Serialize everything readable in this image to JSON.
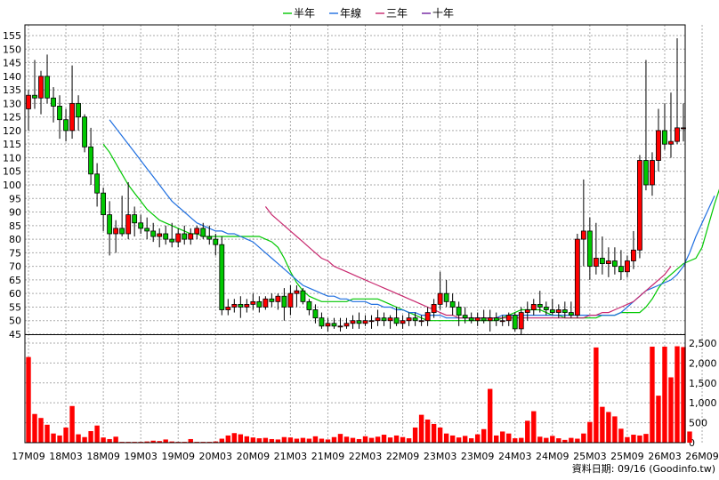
{
  "legend": [
    {
      "name": "半年",
      "color": "#00c800"
    },
    {
      "name": "年線",
      "color": "#1f6fe0"
    },
    {
      "name": "三年",
      "color": "#c8286e"
    },
    {
      "name": "十年",
      "color": "#7020a0"
    }
  ],
  "footer": {
    "date_label": "資料日期: 09/16",
    "source": "(Goodinfo.tw)"
  },
  "chart_data": [
    {
      "type": "candlestick",
      "price_axis": {
        "min": 45,
        "max": 155,
        "ticks": [
          45,
          50,
          55,
          60,
          65,
          70,
          75,
          80,
          85,
          90,
          95,
          100,
          105,
          110,
          115,
          120,
          125,
          130,
          135,
          140,
          145,
          150,
          155
        ]
      },
      "x_tick_labels": [
        "17M09",
        "18M03",
        "18M09",
        "19M03",
        "19M09",
        "20M03",
        "20M09",
        "21M03",
        "21M09",
        "22M03",
        "22M09",
        "23M03",
        "23M09",
        "24M03",
        "24M09",
        "25M03",
        "25M09",
        "26M03",
        "26M09"
      ],
      "candles": [
        [
          128,
          135,
          120,
          133
        ],
        [
          133,
          146,
          128,
          132
        ],
        [
          132,
          142,
          126,
          140
        ],
        [
          140,
          148,
          130,
          132
        ],
        [
          132,
          136,
          123,
          129
        ],
        [
          129,
          133,
          117,
          124
        ],
        [
          124,
          128,
          116,
          120
        ],
        [
          120,
          144,
          117,
          130
        ],
        [
          130,
          133,
          120,
          125
        ],
        [
          125,
          126,
          112,
          114
        ],
        [
          114,
          121,
          100,
          104
        ],
        [
          104,
          108,
          92,
          97
        ],
        [
          97,
          99,
          83,
          89
        ],
        [
          89,
          94,
          74,
          82
        ],
        [
          82,
          87,
          75,
          84
        ],
        [
          84,
          96,
          81,
          82
        ],
        [
          82,
          101,
          80,
          89
        ],
        [
          89,
          92,
          81,
          86
        ],
        [
          86,
          89,
          82,
          84
        ],
        [
          84,
          88,
          80,
          83
        ],
        [
          83,
          86,
          79,
          81
        ],
        [
          81,
          84,
          77,
          82
        ],
        [
          82,
          85,
          78,
          80
        ],
        [
          80,
          86,
          77,
          79
        ],
        [
          79,
          84,
          77,
          82
        ],
        [
          82,
          85,
          78,
          80
        ],
        [
          80,
          84,
          78,
          82
        ],
        [
          82,
          85,
          80,
          84
        ],
        [
          84,
          86,
          80,
          81
        ],
        [
          81,
          85,
          78,
          80
        ],
        [
          80,
          82,
          74,
          78
        ],
        [
          78,
          81,
          52,
          54
        ],
        [
          54,
          58,
          52,
          55
        ],
        [
          55,
          58,
          53,
          56
        ],
        [
          56,
          59,
          51,
          55
        ],
        [
          55,
          58,
          53,
          56
        ],
        [
          56,
          60,
          54,
          57
        ],
        [
          57,
          59,
          53,
          55
        ],
        [
          55,
          59,
          54,
          58
        ],
        [
          58,
          60,
          55,
          57
        ],
        [
          57,
          60,
          54,
          59
        ],
        [
          59,
          62,
          50,
          55
        ],
        [
          55,
          63,
          52,
          60
        ],
        [
          60,
          63,
          55,
          61
        ],
        [
          61,
          62,
          56,
          57
        ],
        [
          57,
          58,
          52,
          54
        ],
        [
          54,
          56,
          49,
          51
        ],
        [
          51,
          53,
          47,
          48
        ],
        [
          48,
          51,
          46,
          49
        ],
        [
          49,
          51,
          47,
          48
        ],
        [
          48,
          51,
          46,
          48
        ],
        [
          48,
          51,
          47,
          49
        ],
        [
          49,
          52,
          47,
          50
        ],
        [
          50,
          53,
          47,
          49
        ],
        [
          49,
          52,
          48,
          50
        ],
        [
          50,
          52,
          47,
          50
        ],
        [
          50,
          54,
          48,
          51
        ],
        [
          51,
          53,
          48,
          50
        ],
        [
          50,
          52,
          47,
          51
        ],
        [
          51,
          55,
          48,
          49
        ],
        [
          49,
          52,
          47,
          50
        ],
        [
          50,
          53,
          48,
          51
        ],
        [
          51,
          53,
          48,
          50
        ],
        [
          50,
          52,
          48,
          50
        ],
        [
          50,
          55,
          48,
          53
        ],
        [
          53,
          58,
          51,
          56
        ],
        [
          56,
          68,
          54,
          60
        ],
        [
          60,
          65,
          55,
          57
        ],
        [
          57,
          60,
          52,
          55
        ],
        [
          55,
          57,
          48,
          52
        ],
        [
          52,
          55,
          49,
          51
        ],
        [
          51,
          53,
          49,
          50
        ],
        [
          50,
          53,
          48,
          51
        ],
        [
          51,
          54,
          49,
          50
        ],
        [
          50,
          54,
          46,
          51
        ],
        [
          51,
          53,
          48,
          50
        ],
        [
          50,
          52,
          48,
          50
        ],
        [
          50,
          53,
          48,
          52
        ],
        [
          52,
          53,
          46,
          47
        ],
        [
          47,
          55,
          45,
          53
        ],
        [
          53,
          57,
          50,
          54
        ],
        [
          54,
          58,
          52,
          56
        ],
        [
          56,
          61,
          53,
          55
        ],
        [
          55,
          57,
          52,
          54
        ],
        [
          54,
          58,
          52,
          53
        ],
        [
          53,
          56,
          51,
          54
        ],
        [
          54,
          57,
          51,
          53
        ],
        [
          53,
          57,
          51,
          52
        ],
        [
          52,
          82,
          51,
          80
        ],
        [
          80,
          102,
          70,
          83
        ],
        [
          83,
          88,
          65,
          70
        ],
        [
          70,
          86,
          67,
          73
        ],
        [
          73,
          81,
          67,
          71
        ],
        [
          71,
          77,
          66,
          72
        ],
        [
          72,
          77,
          67,
          70
        ],
        [
          70,
          76,
          65,
          68
        ],
        [
          68,
          74,
          66,
          72
        ],
        [
          72,
          83,
          69,
          76
        ],
        [
          76,
          111,
          73,
          109
        ],
        [
          109,
          146,
          98,
          100
        ],
        [
          100,
          112,
          96,
          109
        ],
        [
          109,
          128,
          105,
          120
        ],
        [
          120,
          130,
          113,
          115
        ],
        [
          115,
          134,
          110,
          116
        ],
        [
          116,
          154,
          115,
          121
        ],
        [
          121,
          130,
          116,
          121
        ]
      ],
      "ma": [
        {
          "name": "半年",
          "start": 12,
          "values": [
            115,
            112,
            108,
            104,
            100,
            97,
            94,
            91,
            89,
            87,
            86,
            85,
            84,
            83,
            82,
            82,
            81,
            81,
            81,
            81,
            81,
            81,
            81,
            81,
            81,
            81,
            80,
            79,
            77,
            73,
            68,
            64,
            61,
            59,
            58,
            57,
            57,
            57,
            57,
            57,
            58,
            58,
            58,
            58,
            58,
            57,
            56,
            55,
            54,
            53,
            52,
            51,
            50,
            50,
            50,
            50,
            50,
            50,
            50,
            50,
            50,
            50,
            50,
            50,
            51,
            52,
            53,
            54,
            54,
            54,
            54,
            53,
            52,
            52,
            51,
            51,
            51,
            51,
            51,
            51,
            52,
            52,
            52,
            53,
            53,
            53,
            53,
            55,
            58,
            62,
            65,
            67,
            69,
            71,
            72,
            73,
            77,
            85,
            93,
            100,
            106,
            110,
            113,
            116
          ]
        },
        {
          "name": "年線",
          "start": 13,
          "values": [
            124,
            121,
            118,
            115,
            112,
            109,
            106,
            103,
            100,
            97,
            94,
            92,
            90,
            88,
            86,
            85,
            84,
            83,
            83,
            82,
            82,
            81,
            80,
            79,
            77,
            75,
            73,
            71,
            69,
            67,
            65,
            63,
            62,
            61,
            60,
            59,
            59,
            58,
            58,
            57,
            57,
            57,
            56,
            56,
            55,
            55,
            54,
            54,
            53,
            53,
            52,
            52,
            52,
            52,
            51,
            51,
            51,
            51,
            51,
            51,
            51,
            51,
            51,
            52,
            52,
            52,
            52,
            52,
            52,
            52,
            52,
            52,
            52,
            52,
            52,
            52,
            52,
            52,
            52,
            52,
            52,
            52,
            53,
            55,
            57,
            59,
            61,
            62,
            63,
            64,
            65,
            67,
            70,
            75,
            81,
            86,
            91,
            96
          ]
        },
        {
          "name": "三年",
          "start": 38,
          "values": [
            92,
            89,
            87,
            85,
            83,
            81,
            79,
            77,
            75,
            73,
            72,
            70,
            69,
            68,
            67,
            66,
            65,
            64,
            63,
            62,
            61,
            60,
            59,
            58,
            57,
            56,
            55,
            54,
            53,
            52,
            52,
            51,
            51,
            51,
            51,
            51,
            51,
            51,
            51,
            51,
            51,
            51,
            51,
            51,
            51,
            51,
            51,
            51,
            51,
            51,
            51,
            51,
            52,
            52,
            53,
            53,
            54,
            55,
            56,
            57,
            59,
            61,
            63,
            65,
            67,
            70
          ]
        }
      ],
      "volume": {
        "axis_ticks": [
          0,
          500,
          1000,
          1500,
          2000,
          2500
        ],
        "values": [
          2150,
          720,
          620,
          450,
          230,
          180,
          380,
          920,
          210,
          140,
          290,
          430,
          130,
          90,
          150,
          20,
          20,
          20,
          20,
          30,
          50,
          40,
          80,
          30,
          20,
          20,
          90,
          20,
          20,
          20,
          30,
          100,
          180,
          240,
          210,
          160,
          130,
          110,
          120,
          90,
          80,
          140,
          130,
          100,
          120,
          100,
          160,
          100,
          80,
          140,
          220,
          150,
          120,
          90,
          160,
          120,
          150,
          200,
          130,
          180,
          140,
          110,
          380,
          700,
          580,
          470,
          380,
          230,
          180,
          130,
          170,
          110,
          210,
          340,
          1350,
          180,
          280,
          230,
          110,
          120,
          550,
          790,
          150,
          120,
          170,
          110,
          70,
          120,
          100,
          230,
          520,
          2390,
          900,
          770,
          660,
          350,
          140,
          200,
          180,
          220,
          2410,
          1180,
          2410,
          1640,
          2420,
          2400,
          280
        ]
      }
    }
  ]
}
